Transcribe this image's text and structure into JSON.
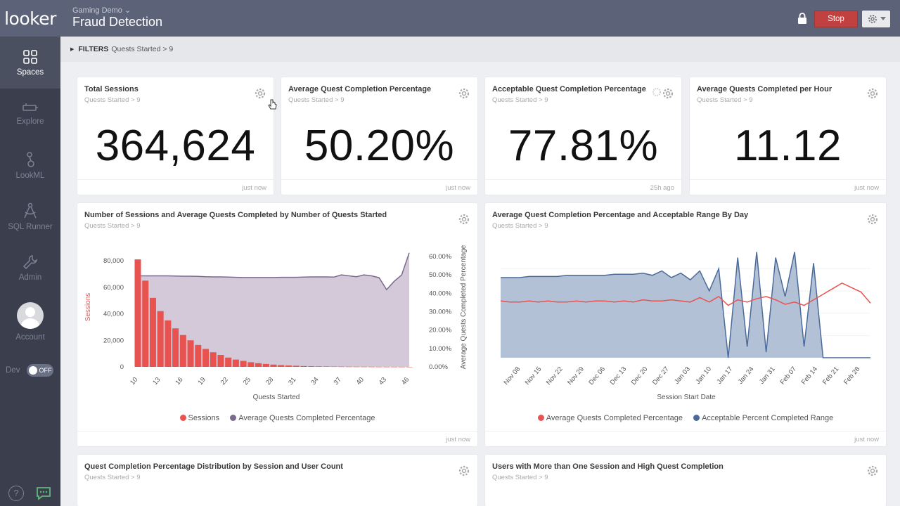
{
  "app": {
    "logo": "looker"
  },
  "sidebar": {
    "items": [
      {
        "label": "Spaces",
        "icon": "spaces-icon",
        "active": true
      },
      {
        "label": "Explore",
        "icon": "explore-icon"
      },
      {
        "label": "LookML",
        "icon": "lookml-icon"
      },
      {
        "label": "SQL Runner",
        "icon": "sql-runner-icon"
      },
      {
        "label": "Admin",
        "icon": "admin-icon"
      }
    ],
    "account_label": "Account",
    "dev_label": "Dev",
    "dev_toggle": "OFF",
    "help_label": "?"
  },
  "header": {
    "breadcrumb": "Gaming Demo ⌄",
    "title": "Fraud Detection",
    "stop_label": "Stop"
  },
  "filters": {
    "label": "FILTERS",
    "value": "Quests Started > 9"
  },
  "tiles": {
    "total_sessions": {
      "title": "Total Sessions",
      "subtitle": "Quests Started > 9",
      "value": "364,624",
      "time": "just now"
    },
    "avg_completion": {
      "title": "Average Quest Completion Percentage",
      "subtitle": "Quests Started > 9",
      "value": "50.20%",
      "time": "just now"
    },
    "acceptable_completion": {
      "title": "Acceptable Quest Completion Percentage",
      "subtitle": "Quests Started > 9",
      "value": "77.81%",
      "time": "25h ago"
    },
    "avg_per_hour": {
      "title": "Average Quests Completed per Hour",
      "subtitle": "Quests Started > 9",
      "value": "11.12",
      "time": "just now"
    },
    "sessions_chart": {
      "title": "Number of Sessions and Average Quests Completed by Number of Quests Started",
      "subtitle": "Quests Started > 9",
      "time": "just now"
    },
    "range_chart": {
      "title": "Average Quest Completion Percentage and Acceptable Range By Day",
      "subtitle": "Quests Started > 9",
      "time": "just now"
    },
    "distribution": {
      "title": "Quest Completion Percentage Distribution by Session and User Count",
      "subtitle": "Quests Started > 9"
    },
    "multi_session": {
      "title": "Users with More than One Session and High Quest Completion",
      "subtitle": "Quests Started > 9"
    }
  },
  "chart_data": [
    {
      "type": "bar",
      "ylabel": "Sessions",
      "y2label": "Average Quests Completed Percentage",
      "xlabel": "Quests Started",
      "ylim": [
        0,
        80000
      ],
      "y2lim": [
        0,
        60
      ],
      "y_ticks": [
        "0",
        "20,000",
        "40,000",
        "60,000",
        "80,000"
      ],
      "y2_ticks": [
        "0.00%",
        "10.00%",
        "20.00%",
        "30.00%",
        "40.00%",
        "50.00%",
        "60.00%"
      ],
      "x_ticks": [
        "10",
        "13",
        "16",
        "19",
        "22",
        "25",
        "28",
        "31",
        "34",
        "37",
        "40",
        "43",
        "46"
      ],
      "x": [
        10,
        11,
        12,
        13,
        14,
        15,
        16,
        17,
        18,
        19,
        20,
        21,
        22,
        23,
        24,
        25,
        26,
        27,
        28,
        29,
        30,
        31,
        32,
        33,
        34,
        35,
        36,
        37,
        38,
        39,
        40,
        41,
        42,
        43,
        44,
        45,
        46
      ],
      "series": [
        {
          "name": "Sessions",
          "color": "#e8534f",
          "type": "bar",
          "values": [
            81000,
            65000,
            52000,
            42000,
            35000,
            29000,
            24000,
            20000,
            16500,
            13500,
            11000,
            9000,
            7000,
            5500,
            4500,
            3500,
            2800,
            2200,
            1700,
            1300,
            1000,
            800,
            600,
            450,
            350,
            280,
            220,
            170,
            130,
            100,
            80,
            60,
            45,
            35,
            25,
            20,
            15
          ]
        },
        {
          "name": "Average Quests Completed Percentage",
          "color": "#7b6a8d",
          "type": "area",
          "values": [
            49.5,
            49.5,
            49.5,
            49.5,
            49.5,
            49.4,
            49.3,
            49.3,
            49.2,
            49.0,
            48.9,
            48.9,
            48.8,
            48.7,
            48.6,
            48.6,
            48.6,
            48.6,
            48.6,
            48.7,
            48.7,
            48.7,
            48.8,
            48.9,
            48.9,
            48.9,
            48.8,
            50.0,
            49.5,
            49.0,
            50.0,
            49.5,
            48.5,
            42.0,
            46.5,
            50.0,
            62.0
          ]
        }
      ]
    },
    {
      "type": "area",
      "xlabel": "Session Start Date",
      "x_ticks": [
        "Nov 08",
        "Nov 15",
        "Nov 22",
        "Nov 29",
        "Dec 06",
        "Dec 13",
        "Dec 20",
        "Dec 27",
        "Jan 03",
        "Jan 10",
        "Jan 17",
        "Jan 24",
        "Jan 31",
        "Feb 07",
        "Feb 14",
        "Feb 21",
        "Feb 28"
      ],
      "series": [
        {
          "name": "Average Quests Completed Percentage",
          "color": "#e8534f",
          "type": "line",
          "values": [
            0.51,
            0.5,
            0.5,
            0.51,
            0.5,
            0.51,
            0.5,
            0.5,
            0.51,
            0.5,
            0.51,
            0.51,
            0.5,
            0.51,
            0.5,
            0.52,
            0.51,
            0.51,
            0.52,
            0.51,
            0.5,
            0.54,
            0.5,
            0.55,
            0.47,
            0.52,
            0.5,
            0.53,
            0.55,
            0.52,
            0.48,
            0.5,
            0.47,
            0.52,
            0.57,
            0.62,
            0.67,
            0.63,
            0.59,
            0.49
          ]
        },
        {
          "name": "Acceptable Percent Completed Range",
          "color": "#4a6a9a",
          "type": "area",
          "values": [
            0.72,
            0.72,
            0.72,
            0.73,
            0.73,
            0.73,
            0.73,
            0.74,
            0.74,
            0.74,
            0.74,
            0.74,
            0.75,
            0.75,
            0.75,
            0.76,
            0.74,
            0.78,
            0.72,
            0.76,
            0.7,
            0.78,
            0.6,
            0.8,
            0.0,
            0.9,
            0.1,
            0.95,
            0.05,
            0.9,
            0.55,
            0.95,
            0.1,
            0.85,
            0.0,
            0.0,
            0.0,
            0.0,
            0.0,
            0.0
          ]
        }
      ]
    }
  ]
}
